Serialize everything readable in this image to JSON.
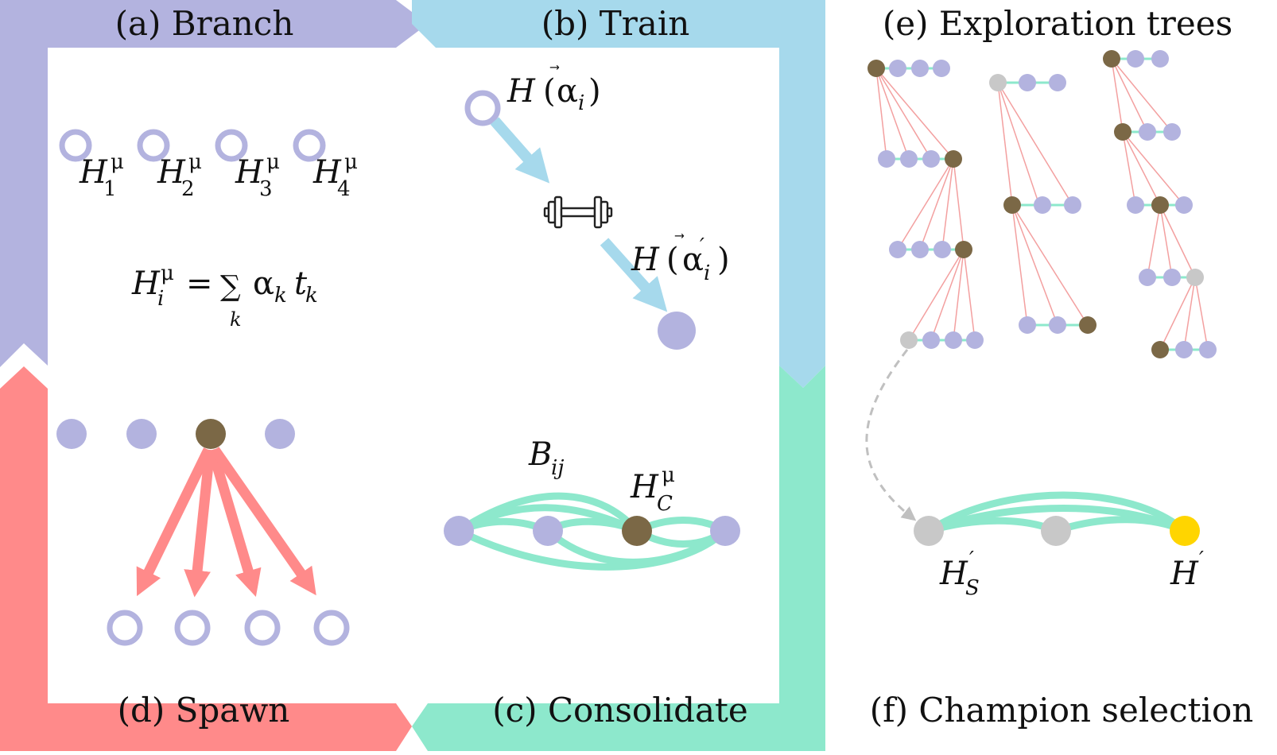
{
  "panels": {
    "a": "(a) Branch",
    "b": "(b) Train",
    "c": "(c) Consolidate",
    "d": "(d) Spawn",
    "e": "(e) Exploration trees",
    "f": "(f) Champion selection"
  },
  "branch": {
    "H": "H",
    "mu": "μ",
    "subs": [
      "1",
      "2",
      "3",
      "4"
    ],
    "formula": {
      "H": "H",
      "mu": "μ",
      "i": "i",
      "eq": "=",
      "sum": "∑",
      "k": "k",
      "alpha": "α",
      "t": "t"
    }
  },
  "train": {
    "H": "H",
    "lp": "(",
    "rp": ")",
    "alpha": "α",
    "vec": "⃗",
    "i": "i",
    "prime": "′"
  },
  "consolidate": {
    "B": "B",
    "ij": "ij",
    "H": "H",
    "mu": "μ",
    "C": "C"
  },
  "champion": {
    "H": "H",
    "prime": "′",
    "S": "S"
  },
  "colors": {
    "purple": "#b3b3df",
    "blue": "#a6d9ec",
    "green": "#8de8cc",
    "red": "#ff8a8a",
    "brown": "#7b6846",
    "gray": "#c8c8c8",
    "gold": "#ffd500",
    "tree_edge": "#f3a0a0"
  }
}
